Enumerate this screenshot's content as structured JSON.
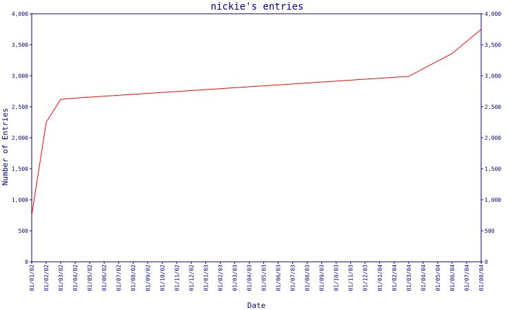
{
  "chart_data": {
    "type": "line",
    "title": "nickie's entries",
    "xlabel": "Date",
    "ylabel": "Number of Entries",
    "ylim": [
      0,
      4000
    ],
    "y_ticks": [
      "0",
      "500",
      "1,000",
      "1,500",
      "2,000",
      "2,500",
      "3,000",
      "3,500",
      "4,000"
    ],
    "y_tick_values": [
      0,
      500,
      1000,
      1500,
      2000,
      2500,
      3000,
      3500,
      4000
    ],
    "categories": [
      "01/01/02",
      "01/02/02",
      "01/03/02",
      "01/04/02",
      "01/05/02",
      "01/06/02",
      "01/07/02",
      "01/08/02",
      "01/09/02",
      "01/10/02",
      "01/11/02",
      "01/12/02",
      "01/01/03",
      "01/02/03",
      "01/03/03",
      "01/04/03",
      "01/05/03",
      "01/06/03",
      "01/07/03",
      "01/08/03",
      "01/09/03",
      "01/10/03",
      "01/11/03",
      "01/12/03",
      "01/01/04",
      "01/02/04",
      "01/03/04",
      "01/04/04",
      "01/05/04",
      "01/06/04",
      "01/07/04",
      "01/08/04"
    ],
    "series": [
      {
        "x": [
          "01/01/02",
          "01/02/02",
          "01/03/02",
          "01/04/02",
          "01/03/04",
          "01/06/04",
          "01/08/04"
        ],
        "values": [
          750,
          2250,
          2620,
          2640,
          2990,
          3360,
          3750
        ]
      }
    ],
    "colors": {
      "frame": "#000080",
      "text": "#000080",
      "line": "#ff0000",
      "background": "#ffffff"
    },
    "grid": false
  }
}
